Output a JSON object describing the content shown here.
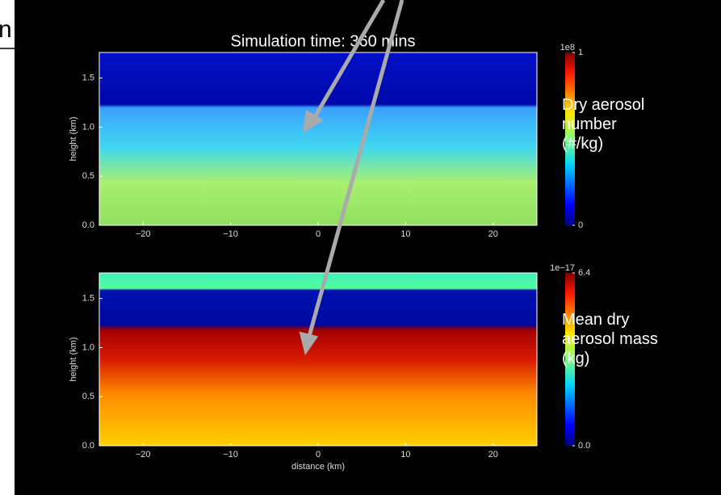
{
  "fragment": "n",
  "title": "Simulation time: 360 mins",
  "chart_data": [
    {
      "type": "heatmap",
      "ylabel": "height (km)",
      "xlim": [
        -25,
        25
      ],
      "xticks": [
        {
          "value": -20,
          "label": "−20"
        },
        {
          "value": -10,
          "label": "−10"
        },
        0,
        10,
        20
      ],
      "ylim": [
        0,
        1.76
      ],
      "yticks": [
        {
          "value": 0,
          "label": "0.0"
        },
        0.5,
        {
          "value": 1,
          "label": "1.0"
        },
        1.5
      ],
      "colorbar": {
        "label": "Dry aerosol number (#/kg)",
        "lim": [
          0,
          1
        ],
        "ticks": [
          0,
          1
        ],
        "offset_label": "1e8"
      }
    },
    {
      "type": "heatmap",
      "ylabel": "height (km)",
      "xlabel": "distance (km)",
      "xlim": [
        -25,
        25
      ],
      "xticks": [
        {
          "value": -20,
          "label": "−20"
        },
        {
          "value": -10,
          "label": "−10"
        },
        0,
        10,
        20
      ],
      "ylim": [
        0,
        1.76
      ],
      "yticks": [
        {
          "value": 0,
          "label": "0.0"
        },
        0.5,
        {
          "value": 1,
          "label": "1.0"
        },
        1.5
      ],
      "colorbar": {
        "label": "Mean dry aerosol mass (kg)",
        "lim": [
          0,
          6.4
        ],
        "ticks": [
          {
            "value": 0,
            "label": "0.0"
          },
          6.4
        ],
        "offset_label": "1e−17"
      }
    }
  ]
}
